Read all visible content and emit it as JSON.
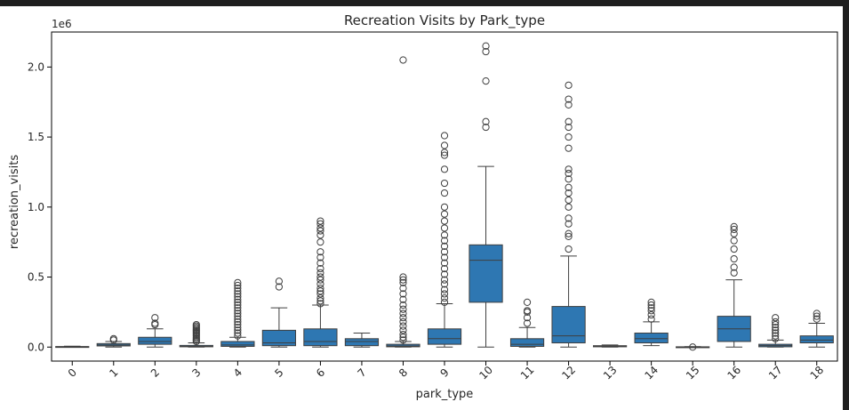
{
  "chart_data": {
    "type": "box",
    "title": "Recreation Visits by Park_type",
    "xlabel": "park_type",
    "ylabel": "recreation_visits",
    "y_multiplier_label": "1e6",
    "y_ticks": [
      "0.0",
      "0.5",
      "1.0",
      "1.5",
      "2.0"
    ],
    "y_tick_values": [
      0,
      0.5,
      1.0,
      1.5,
      2.0
    ],
    "ylim": [
      -0.1,
      2.25
    ],
    "box_color": "#2e77b2",
    "categories": [
      "0",
      "1",
      "2",
      "3",
      "4",
      "5",
      "6",
      "7",
      "8",
      "9",
      "10",
      "11",
      "12",
      "13",
      "14",
      "15",
      "16",
      "17",
      "18"
    ],
    "boxes": [
      {
        "min": 0.0,
        "q1": 0.0,
        "median": 0.002,
        "q3": 0.004,
        "max": 0.006,
        "outliers": []
      },
      {
        "min": 0.0,
        "q1": 0.008,
        "median": 0.015,
        "q3": 0.025,
        "max": 0.04,
        "outliers": [
          0.05,
          0.06
        ]
      },
      {
        "min": 0.0,
        "q1": 0.02,
        "median": 0.04,
        "q3": 0.07,
        "max": 0.13,
        "outliers": [
          0.16,
          0.17,
          0.21
        ]
      },
      {
        "min": 0.0,
        "q1": 0.002,
        "median": 0.005,
        "q3": 0.012,
        "max": 0.03,
        "outliers": [
          0.04,
          0.05,
          0.06,
          0.07,
          0.08,
          0.09,
          0.1,
          0.11,
          0.12,
          0.13,
          0.14,
          0.15,
          0.16
        ]
      },
      {
        "min": 0.0,
        "q1": 0.005,
        "median": 0.015,
        "q3": 0.04,
        "max": 0.07,
        "outliers": [
          0.08,
          0.1,
          0.12,
          0.14,
          0.16,
          0.18,
          0.2,
          0.22,
          0.24,
          0.26,
          0.28,
          0.3,
          0.32,
          0.34,
          0.36,
          0.38,
          0.4,
          0.42,
          0.44,
          0.46
        ]
      },
      {
        "min": 0.0,
        "q1": 0.01,
        "median": 0.03,
        "q3": 0.12,
        "max": 0.28,
        "outliers": [
          0.43,
          0.47
        ]
      },
      {
        "min": 0.0,
        "q1": 0.01,
        "median": 0.04,
        "q3": 0.13,
        "max": 0.3,
        "outliers": [
          0.31,
          0.33,
          0.35,
          0.38,
          0.4,
          0.42,
          0.45,
          0.48,
          0.5,
          0.53,
          0.56,
          0.6,
          0.64,
          0.68,
          0.75,
          0.8,
          0.83,
          0.85,
          0.88,
          0.9
        ]
      },
      {
        "min": 0.0,
        "q1": 0.01,
        "median": 0.04,
        "q3": 0.06,
        "max": 0.1,
        "outliers": []
      },
      {
        "min": 0.0,
        "q1": 0.002,
        "median": 0.008,
        "q3": 0.02,
        "max": 0.04,
        "outliers": [
          0.05,
          0.07,
          0.09,
          0.12,
          0.15,
          0.18,
          0.21,
          0.24,
          0.27,
          0.3,
          0.34,
          0.38,
          0.42,
          0.46,
          0.48,
          0.5,
          2.05
        ]
      },
      {
        "min": 0.0,
        "q1": 0.02,
        "median": 0.06,
        "q3": 0.13,
        "max": 0.31,
        "outliers": [
          0.32,
          0.35,
          0.38,
          0.41,
          0.45,
          0.48,
          0.52,
          0.56,
          0.6,
          0.64,
          0.68,
          0.72,
          0.76,
          0.8,
          0.85,
          0.9,
          0.95,
          1.0,
          1.1,
          1.17,
          1.27,
          1.37,
          1.39,
          1.44,
          1.51
        ]
      },
      {
        "min": 0.0,
        "q1": 0.32,
        "median": 0.62,
        "q3": 0.73,
        "max": 1.29,
        "outliers": [
          1.57,
          1.61,
          1.9,
          2.11,
          2.15
        ]
      },
      {
        "min": 0.0,
        "q1": 0.005,
        "median": 0.02,
        "q3": 0.06,
        "max": 0.14,
        "outliers": [
          0.17,
          0.21,
          0.25,
          0.26,
          0.32
        ]
      },
      {
        "min": 0.0,
        "q1": 0.03,
        "median": 0.08,
        "q3": 0.29,
        "max": 0.65,
        "outliers": [
          0.7,
          0.79,
          0.81,
          0.88,
          0.92,
          1.0,
          1.05,
          1.1,
          1.14,
          1.2,
          1.24,
          1.27,
          1.42,
          1.5,
          1.57,
          1.61,
          1.73,
          1.77,
          1.87
        ]
      },
      {
        "min": 0.0,
        "q1": 0.002,
        "median": 0.005,
        "q3": 0.01,
        "max": 0.015,
        "outliers": []
      },
      {
        "min": 0.01,
        "q1": 0.03,
        "median": 0.06,
        "q3": 0.1,
        "max": 0.18,
        "outliers": [
          0.2,
          0.23,
          0.26,
          0.28,
          0.3,
          0.32
        ]
      },
      {
        "min": 0.0,
        "q1": 0.0,
        "median": 0.001,
        "q3": 0.002,
        "max": 0.003,
        "outliers": [
          0.0
        ]
      },
      {
        "min": 0.0,
        "q1": 0.04,
        "median": 0.13,
        "q3": 0.22,
        "max": 0.48,
        "outliers": [
          0.53,
          0.57,
          0.63,
          0.7,
          0.76,
          0.81,
          0.84,
          0.86
        ]
      },
      {
        "min": 0.0,
        "q1": 0.002,
        "median": 0.01,
        "q3": 0.02,
        "max": 0.05,
        "outliers": [
          0.06,
          0.08,
          0.1,
          0.12,
          0.14,
          0.16,
          0.18,
          0.21
        ]
      },
      {
        "min": 0.0,
        "q1": 0.03,
        "median": 0.05,
        "q3": 0.08,
        "max": 0.17,
        "outliers": [
          0.2,
          0.22,
          0.24
        ]
      }
    ]
  }
}
